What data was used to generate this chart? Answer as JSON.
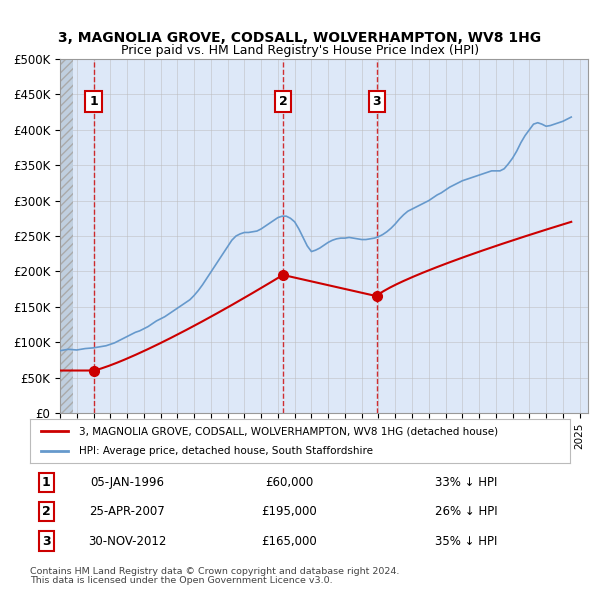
{
  "title": "3, MAGNOLIA GROVE, CODSALL, WOLVERHAMPTON, WV8 1HG",
  "subtitle": "Price paid vs. HM Land Registry's House Price Index (HPI)",
  "legend_line1": "3, MAGNOLIA GROVE, CODSALL, WOLVERHAMPTON, WV8 1HG (detached house)",
  "legend_line2": "HPI: Average price, detached house, South Staffordshire",
  "footer_line1": "Contains HM Land Registry data © Crown copyright and database right 2024.",
  "footer_line2": "This data is licensed under the Open Government Licence v3.0.",
  "transactions": [
    {
      "num": 1,
      "date": "05-JAN-1996",
      "price": 60000,
      "pct": "33%",
      "year": 1996.0
    },
    {
      "num": 2,
      "date": "25-APR-2007",
      "price": 195000,
      "pct": "26%",
      "year": 2007.3
    },
    {
      "num": 3,
      "date": "30-NOV-2012",
      "price": 165000,
      "pct": "35%",
      "year": 2012.9
    }
  ],
  "ylim": [
    0,
    500000
  ],
  "xlim": [
    1994,
    2025.5
  ],
  "yticks": [
    0,
    50000,
    100000,
    150000,
    200000,
    250000,
    300000,
    350000,
    400000,
    450000,
    500000
  ],
  "ytick_labels": [
    "£0",
    "£50K",
    "£100K",
    "£150K",
    "£200K",
    "£250K",
    "£300K",
    "£350K",
    "£400K",
    "£450K",
    "£500K"
  ],
  "bg_color": "#dde8f8",
  "hatch_color": "#c0cfdf",
  "grid_color": "#bbbbbb",
  "red_color": "#cc0000",
  "blue_color": "#6699cc",
  "hpi_data": {
    "years": [
      1994.0,
      1994.25,
      1994.5,
      1994.75,
      1995.0,
      1995.25,
      1995.5,
      1995.75,
      1996.0,
      1996.25,
      1996.5,
      1996.75,
      1997.0,
      1997.25,
      1997.5,
      1997.75,
      1998.0,
      1998.25,
      1998.5,
      1998.75,
      1999.0,
      1999.25,
      1999.5,
      1999.75,
      2000.0,
      2000.25,
      2000.5,
      2000.75,
      2001.0,
      2001.25,
      2001.5,
      2001.75,
      2002.0,
      2002.25,
      2002.5,
      2002.75,
      2003.0,
      2003.25,
      2003.5,
      2003.75,
      2004.0,
      2004.25,
      2004.5,
      2004.75,
      2005.0,
      2005.25,
      2005.5,
      2005.75,
      2006.0,
      2006.25,
      2006.5,
      2006.75,
      2007.0,
      2007.25,
      2007.5,
      2007.75,
      2008.0,
      2008.25,
      2008.5,
      2008.75,
      2009.0,
      2009.25,
      2009.5,
      2009.75,
      2010.0,
      2010.25,
      2010.5,
      2010.75,
      2011.0,
      2011.25,
      2011.5,
      2011.75,
      2012.0,
      2012.25,
      2012.5,
      2012.75,
      2013.0,
      2013.25,
      2013.5,
      2013.75,
      2014.0,
      2014.25,
      2014.5,
      2014.75,
      2015.0,
      2015.25,
      2015.5,
      2015.75,
      2016.0,
      2016.25,
      2016.5,
      2016.75,
      2017.0,
      2017.25,
      2017.5,
      2017.75,
      2018.0,
      2018.25,
      2018.5,
      2018.75,
      2019.0,
      2019.25,
      2019.5,
      2019.75,
      2020.0,
      2020.25,
      2020.5,
      2020.75,
      2021.0,
      2021.25,
      2021.5,
      2021.75,
      2022.0,
      2022.25,
      2022.5,
      2022.75,
      2023.0,
      2023.25,
      2023.5,
      2023.75,
      2024.0,
      2024.25,
      2024.5
    ],
    "values": [
      88000,
      89000,
      90000,
      89500,
      89000,
      90000,
      91000,
      91500,
      92000,
      93000,
      94000,
      95000,
      97000,
      99000,
      102000,
      105000,
      108000,
      111000,
      114000,
      116000,
      119000,
      122000,
      126000,
      130000,
      133000,
      136000,
      140000,
      144000,
      148000,
      152000,
      156000,
      160000,
      166000,
      173000,
      181000,
      190000,
      199000,
      208000,
      217000,
      226000,
      235000,
      244000,
      250000,
      253000,
      255000,
      255000,
      256000,
      257000,
      260000,
      264000,
      268000,
      272000,
      276000,
      278000,
      278000,
      275000,
      270000,
      260000,
      248000,
      236000,
      228000,
      230000,
      233000,
      237000,
      241000,
      244000,
      246000,
      247000,
      247000,
      248000,
      247000,
      246000,
      245000,
      245000,
      246000,
      247000,
      249000,
      252000,
      256000,
      261000,
      267000,
      274000,
      280000,
      285000,
      288000,
      291000,
      294000,
      297000,
      300000,
      304000,
      308000,
      311000,
      315000,
      319000,
      322000,
      325000,
      328000,
      330000,
      332000,
      334000,
      336000,
      338000,
      340000,
      342000,
      342000,
      342000,
      345000,
      352000,
      360000,
      370000,
      382000,
      392000,
      400000,
      408000,
      410000,
      408000,
      405000,
      406000,
      408000,
      410000,
      412000,
      415000,
      418000
    ]
  },
  "price_paid_data": {
    "years": [
      1996.0,
      2007.3,
      2012.9
    ],
    "values": [
      60000,
      195000,
      165000
    ]
  },
  "red_line_segments": {
    "years": [
      1994.0,
      1996.0,
      1996.0,
      2007.3,
      2007.3,
      2012.9,
      2012.9,
      2024.5
    ],
    "values": [
      60000,
      60000,
      60000,
      195000,
      195000,
      165000,
      165000,
      270000
    ]
  }
}
